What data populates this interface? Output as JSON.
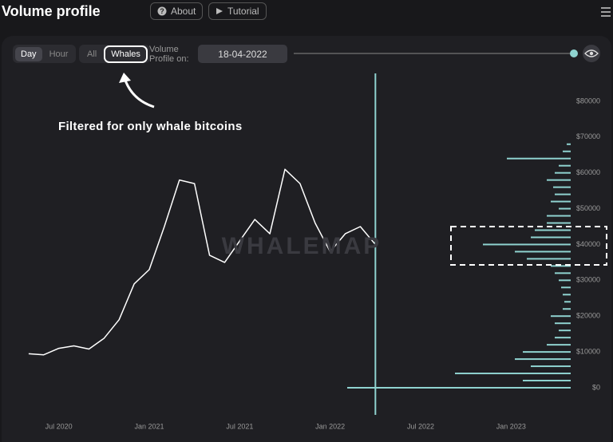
{
  "header": {
    "title": "Volume profile",
    "buttons": [
      "About",
      "Tutorial"
    ]
  },
  "controls": {
    "interval": [
      "Day",
      "Hour"
    ],
    "filter": [
      "All",
      "Whales"
    ],
    "profile_label": "Volume Profile on:",
    "date": "18-04-2022"
  },
  "annotation": "Filtered for only whale bitcoins",
  "chart_data": {
    "type": "line",
    "watermark": "WHALEMAP",
    "color": "#ffffff",
    "x": [
      "2020-05",
      "2020-06",
      "2020-07",
      "2020-08",
      "2020-09",
      "2020-10",
      "2020-11",
      "2020-12",
      "2021-01",
      "2021-02",
      "2021-03",
      "2021-04",
      "2021-05",
      "2021-06",
      "2021-07",
      "2021-08",
      "2021-09",
      "2021-10",
      "2021-11",
      "2021-12",
      "2022-01",
      "2022-02",
      "2022-03",
      "2022-04"
    ],
    "values": [
      9500,
      9200,
      11000,
      11700,
      10800,
      13800,
      19000,
      29000,
      33000,
      45000,
      58000,
      57000,
      37000,
      35000,
      41000,
      47000,
      43000,
      61000,
      57000,
      46000,
      38000,
      43000,
      45000,
      40000
    ],
    "xlim": [
      "2020-04",
      "2023-04"
    ],
    "xticks": [
      {
        "value": "2020-07",
        "label": "Jul 2020"
      },
      {
        "value": "2021-01",
        "label": "Jan 2021"
      },
      {
        "value": "2021-07",
        "label": "Jul 2021"
      },
      {
        "value": "2022-01",
        "label": "Jan 2022"
      },
      {
        "value": "2022-07",
        "label": "Jul 2022"
      },
      {
        "value": "2023-01",
        "label": "Jan 2023"
      }
    ],
    "ylim": [
      0,
      90000
    ],
    "yticks": [
      {
        "value": 0,
        "label": "$0"
      },
      {
        "value": 10000,
        "label": "$10000"
      },
      {
        "value": 20000,
        "label": "$20000"
      },
      {
        "value": 30000,
        "label": "$30000"
      },
      {
        "value": 40000,
        "label": "$40000"
      },
      {
        "value": 50000,
        "label": "$50000"
      },
      {
        "value": 60000,
        "label": "$60000"
      },
      {
        "value": 70000,
        "label": "$70000"
      },
      {
        "value": 80000,
        "label": "$80000"
      }
    ],
    "profile": {
      "color": "#8fd3d0",
      "prices": [
        0,
        2000,
        4000,
        6000,
        8000,
        10000,
        12000,
        14000,
        16000,
        18000,
        20000,
        22000,
        24000,
        26000,
        28000,
        30000,
        32000,
        34000,
        36000,
        38000,
        40000,
        42000,
        44000,
        46000,
        48000,
        50000,
        52000,
        54000,
        56000,
        58000,
        60000,
        62000,
        64000,
        66000,
        68000
      ],
      "values": [
        280,
        60,
        145,
        50,
        70,
        60,
        30,
        20,
        15,
        20,
        25,
        10,
        8,
        10,
        12,
        15,
        20,
        25,
        55,
        70,
        110,
        50,
        45,
        30,
        30,
        15,
        25,
        20,
        22,
        30,
        20,
        15,
        80,
        10,
        5
      ]
    }
  }
}
